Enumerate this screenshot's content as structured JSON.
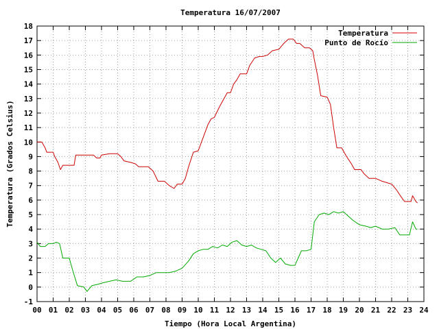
{
  "chart_data": {
    "type": "line",
    "title": "Temperatura 16/07/2007",
    "xlabel": "Tiempo (Hora Local Argentina)",
    "ylabel": "Temperatura (Grados Celsius)",
    "xlim": [
      0,
      24
    ],
    "ylim": [
      -1,
      18
    ],
    "grid": true,
    "legend_position": "top-right",
    "x_tick_labels": [
      "00",
      "01",
      "02",
      "03",
      "04",
      "05",
      "06",
      "07",
      "08",
      "09",
      "10",
      "11",
      "12",
      "13",
      "14",
      "15",
      "16",
      "17",
      "18",
      "19",
      "20",
      "21",
      "22",
      "23",
      "24"
    ],
    "y_tick_labels": [
      "-1",
      "0",
      "1",
      "2",
      "3",
      "4",
      "5",
      "6",
      "7",
      "8",
      "9",
      "10",
      "11",
      "12",
      "13",
      "14",
      "15",
      "16",
      "17",
      "18"
    ],
    "series": [
      {
        "name": "Temperatura",
        "color": "#cc0000",
        "points": [
          [
            0,
            10
          ],
          [
            0.3,
            10
          ],
          [
            0.5,
            9.6
          ],
          [
            0.6,
            9.3
          ],
          [
            1.0,
            9.3
          ],
          [
            1.1,
            9.0
          ],
          [
            1.3,
            8.6
          ],
          [
            1.45,
            8.1
          ],
          [
            1.6,
            8.4
          ],
          [
            2.0,
            8.4
          ],
          [
            2.3,
            8.4
          ],
          [
            2.4,
            9.1
          ],
          [
            3.0,
            9.1
          ],
          [
            3.5,
            9.1
          ],
          [
            3.7,
            8.9
          ],
          [
            3.9,
            8.9
          ],
          [
            4.0,
            9.1
          ],
          [
            4.5,
            9.2
          ],
          [
            5.0,
            9.2
          ],
          [
            5.2,
            9.0
          ],
          [
            5.4,
            8.7
          ],
          [
            5.8,
            8.6
          ],
          [
            6.1,
            8.5
          ],
          [
            6.3,
            8.3
          ],
          [
            6.9,
            8.3
          ],
          [
            7.2,
            8.0
          ],
          [
            7.5,
            7.3
          ],
          [
            7.9,
            7.3
          ],
          [
            8.2,
            7.0
          ],
          [
            8.5,
            6.8
          ],
          [
            8.7,
            7.1
          ],
          [
            9.0,
            7.1
          ],
          [
            9.2,
            7.5
          ],
          [
            9.4,
            8.3
          ],
          [
            9.7,
            9.3
          ],
          [
            10.0,
            9.4
          ],
          [
            10.2,
            10.0
          ],
          [
            10.4,
            10.6
          ],
          [
            10.6,
            11.2
          ],
          [
            10.8,
            11.6
          ],
          [
            11.0,
            11.7
          ],
          [
            11.3,
            12.4
          ],
          [
            11.6,
            13.0
          ],
          [
            11.8,
            13.4
          ],
          [
            12.0,
            13.4
          ],
          [
            12.2,
            14.0
          ],
          [
            12.4,
            14.3
          ],
          [
            12.6,
            14.7
          ],
          [
            13.0,
            14.7
          ],
          [
            13.2,
            15.3
          ],
          [
            13.5,
            15.8
          ],
          [
            13.8,
            15.9
          ],
          [
            14.0,
            15.9
          ],
          [
            14.3,
            16.0
          ],
          [
            14.6,
            16.3
          ],
          [
            15.0,
            16.4
          ],
          [
            15.3,
            16.8
          ],
          [
            15.6,
            17.1
          ],
          [
            15.9,
            17.1
          ],
          [
            16.1,
            16.8
          ],
          [
            16.3,
            16.8
          ],
          [
            16.6,
            16.5
          ],
          [
            16.9,
            16.5
          ],
          [
            17.1,
            16.3
          ],
          [
            17.2,
            15.7
          ],
          [
            17.4,
            14.6
          ],
          [
            17.6,
            13.2
          ],
          [
            18.0,
            13.1
          ],
          [
            18.2,
            12.6
          ],
          [
            18.4,
            11.0
          ],
          [
            18.6,
            9.6
          ],
          [
            18.9,
            9.6
          ],
          [
            19.2,
            9.0
          ],
          [
            19.5,
            8.5
          ],
          [
            19.7,
            8.1
          ],
          [
            20.1,
            8.1
          ],
          [
            20.3,
            7.8
          ],
          [
            20.6,
            7.5
          ],
          [
            21.0,
            7.5
          ],
          [
            21.4,
            7.3
          ],
          [
            21.7,
            7.2
          ],
          [
            22.0,
            7.1
          ],
          [
            22.3,
            6.7
          ],
          [
            22.6,
            6.2
          ],
          [
            22.8,
            5.9
          ],
          [
            23.2,
            5.9
          ],
          [
            23.3,
            6.3
          ],
          [
            23.5,
            5.9
          ],
          [
            23.6,
            5.8
          ]
        ]
      },
      {
        "name": "Punto de Rocío",
        "color": "#00aa00",
        "points": [
          [
            0,
            3.1
          ],
          [
            0.2,
            2.8
          ],
          [
            0.5,
            2.8
          ],
          [
            0.7,
            3.0
          ],
          [
            1.0,
            3.0
          ],
          [
            1.2,
            3.1
          ],
          [
            1.4,
            3.0
          ],
          [
            1.6,
            2.0
          ],
          [
            2.0,
            2.0
          ],
          [
            2.2,
            1.2
          ],
          [
            2.5,
            0.1
          ],
          [
            2.9,
            0.0
          ],
          [
            3.1,
            -0.3
          ],
          [
            3.4,
            0.1
          ],
          [
            3.8,
            0.2
          ],
          [
            4.1,
            0.3
          ],
          [
            4.5,
            0.4
          ],
          [
            4.9,
            0.5
          ],
          [
            5.3,
            0.4
          ],
          [
            5.8,
            0.4
          ],
          [
            6.2,
            0.7
          ],
          [
            6.6,
            0.7
          ],
          [
            7.0,
            0.8
          ],
          [
            7.4,
            1.0
          ],
          [
            7.8,
            1.0
          ],
          [
            8.2,
            1.0
          ],
          [
            8.6,
            1.1
          ],
          [
            9.0,
            1.3
          ],
          [
            9.4,
            1.8
          ],
          [
            9.7,
            2.3
          ],
          [
            10.0,
            2.5
          ],
          [
            10.3,
            2.6
          ],
          [
            10.6,
            2.6
          ],
          [
            10.9,
            2.8
          ],
          [
            11.2,
            2.7
          ],
          [
            11.5,
            2.9
          ],
          [
            11.8,
            2.8
          ],
          [
            12.1,
            3.1
          ],
          [
            12.4,
            3.2
          ],
          [
            12.7,
            2.9
          ],
          [
            13.0,
            2.8
          ],
          [
            13.3,
            2.9
          ],
          [
            13.6,
            2.7
          ],
          [
            13.9,
            2.6
          ],
          [
            14.2,
            2.5
          ],
          [
            14.5,
            2.0
          ],
          [
            14.8,
            1.7
          ],
          [
            15.1,
            2.0
          ],
          [
            15.4,
            1.6
          ],
          [
            15.7,
            1.5
          ],
          [
            16.0,
            1.5
          ],
          [
            16.2,
            2.0
          ],
          [
            16.4,
            2.5
          ],
          [
            16.7,
            2.5
          ],
          [
            17.0,
            2.6
          ],
          [
            17.2,
            4.5
          ],
          [
            17.5,
            5.0
          ],
          [
            17.8,
            5.1
          ],
          [
            18.1,
            5.0
          ],
          [
            18.4,
            5.2
          ],
          [
            18.7,
            5.1
          ],
          [
            19.0,
            5.2
          ],
          [
            19.3,
            4.9
          ],
          [
            19.6,
            4.6
          ],
          [
            20.0,
            4.3
          ],
          [
            20.4,
            4.2
          ],
          [
            20.7,
            4.1
          ],
          [
            21.0,
            4.2
          ],
          [
            21.4,
            4.0
          ],
          [
            21.8,
            4.0
          ],
          [
            22.2,
            4.1
          ],
          [
            22.5,
            3.6
          ],
          [
            22.8,
            3.6
          ],
          [
            23.1,
            3.6
          ],
          [
            23.3,
            4.5
          ],
          [
            23.5,
            4.0
          ],
          [
            23.6,
            4.0
          ]
        ]
      }
    ]
  }
}
